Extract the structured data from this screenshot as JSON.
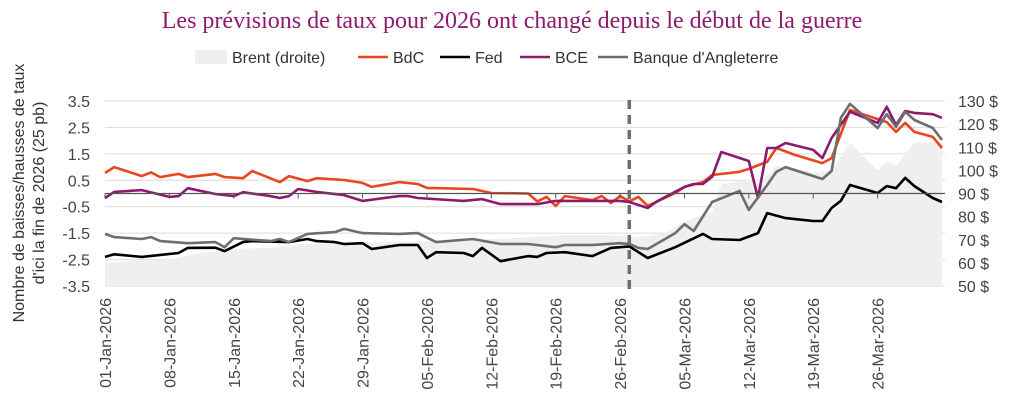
{
  "chart_data": {
    "type": "line",
    "title": "Les prévisions de taux pour 2026 ont changé depuis le début de la guerre",
    "ylabel_lines": [
      "Nombre de baisses/hausses de taux",
      "d'ici la fin de 2026 (25 pb)"
    ],
    "ylim": [
      -3.5,
      3.5
    ],
    "yticks": [
      "3.5",
      "2.5",
      "1.5",
      "0.5",
      "-0.5",
      "-1.5",
      "-2.5",
      "-3.5"
    ],
    "y2lim": [
      50,
      130
    ],
    "y2ticks": [
      "130 $",
      "120 $",
      "110 $",
      "100 $",
      "90 $",
      "80 $",
      "70 $",
      "60 $",
      "50 $"
    ],
    "xlim": [
      "2026-01-01",
      "2026-04-02"
    ],
    "xticks": [
      {
        "date": "2026-01-01",
        "label": "01-Jan-2026"
      },
      {
        "date": "2026-01-08",
        "label": "08-Jan-2026"
      },
      {
        "date": "2026-01-15",
        "label": "15-Jan-2026"
      },
      {
        "date": "2026-01-22",
        "label": "22-Jan-2026"
      },
      {
        "date": "2026-01-29",
        "label": "29-Jan-2026"
      },
      {
        "date": "2026-02-05",
        "label": "05-Feb-2026"
      },
      {
        "date": "2026-02-12",
        "label": "12-Feb-2026"
      },
      {
        "date": "2026-02-19",
        "label": "19-Feb-2026"
      },
      {
        "date": "2026-02-26",
        "label": "26-Feb-2026"
      },
      {
        "date": "2026-03-05",
        "label": "05-Mar-2026"
      },
      {
        "date": "2026-03-12",
        "label": "12-Mar-2026"
      },
      {
        "date": "2026-03-19",
        "label": "19-Mar-2026"
      },
      {
        "date": "2026-03-26",
        "label": "26-Mar-2026"
      }
    ],
    "grid": true,
    "legend_placement": "top",
    "vline_date": "2026-02-27",
    "area": {
      "name": "Brent (droite)",
      "axis": "right",
      "color": "#EEEFEE",
      "points": [
        [
          "2026-01-01",
          60
        ],
        [
          "2026-01-04",
          61
        ],
        [
          "2026-01-08",
          61.5
        ],
        [
          "2026-01-11",
          64
        ],
        [
          "2026-01-15",
          66
        ],
        [
          "2026-01-19",
          66.5
        ],
        [
          "2026-01-22",
          68
        ],
        [
          "2026-01-26",
          68.5
        ],
        [
          "2026-01-29",
          69
        ],
        [
          "2026-02-02",
          69
        ],
        [
          "2026-02-06",
          69.5
        ],
        [
          "2026-02-10",
          70
        ],
        [
          "2026-02-16",
          71
        ],
        [
          "2026-02-20",
          72
        ],
        [
          "2026-02-25",
          72
        ],
        [
          "2026-02-28",
          71
        ],
        [
          "2026-03-03",
          73
        ],
        [
          "2026-03-05",
          78
        ],
        [
          "2026-03-08",
          82
        ],
        [
          "2026-03-09",
          94
        ],
        [
          "2026-03-12",
          96
        ],
        [
          "2026-03-13",
          94
        ],
        [
          "2026-03-15",
          102
        ],
        [
          "2026-03-17",
          101
        ],
        [
          "2026-03-19",
          99
        ],
        [
          "2026-03-21",
          100
        ],
        [
          "2026-03-23",
          112
        ],
        [
          "2026-03-26",
          100
        ],
        [
          "2026-03-27",
          104
        ],
        [
          "2026-03-28",
          102
        ],
        [
          "2026-03-30",
          112
        ],
        [
          "2026-04-02",
          112
        ]
      ]
    },
    "series": [
      {
        "name": "BdC",
        "color": "#E8461E",
        "points": [
          [
            "2026-01-01",
            0.78
          ],
          [
            "2026-01-02",
            1.0
          ],
          [
            "2026-01-05",
            0.66
          ],
          [
            "2026-01-06",
            0.8
          ],
          [
            "2026-01-07",
            0.62
          ],
          [
            "2026-01-09",
            0.74
          ],
          [
            "2026-01-10",
            0.62
          ],
          [
            "2026-01-13",
            0.74
          ],
          [
            "2026-01-14",
            0.62
          ],
          [
            "2026-01-16",
            0.58
          ],
          [
            "2026-01-17",
            0.85
          ],
          [
            "2026-01-20",
            0.43
          ],
          [
            "2026-01-21",
            0.66
          ],
          [
            "2026-01-23",
            0.47
          ],
          [
            "2026-01-24",
            0.58
          ],
          [
            "2026-01-27",
            0.51
          ],
          [
            "2026-01-29",
            0.4
          ],
          [
            "2026-01-30",
            0.25
          ],
          [
            "2026-02-02",
            0.43
          ],
          [
            "2026-02-04",
            0.36
          ],
          [
            "2026-02-05",
            0.21
          ],
          [
            "2026-02-10",
            0.17
          ],
          [
            "2026-02-12",
            0.02
          ],
          [
            "2026-02-16",
            0
          ],
          [
            "2026-02-17",
            -0.3
          ],
          [
            "2026-02-18",
            -0.13
          ],
          [
            "2026-02-19",
            -0.47
          ],
          [
            "2026-02-20",
            -0.1
          ],
          [
            "2026-02-23",
            -0.25
          ],
          [
            "2026-02-24",
            -0.1
          ],
          [
            "2026-02-25",
            -0.36
          ],
          [
            "2026-02-26",
            -0.1
          ],
          [
            "2026-02-27",
            -0.3
          ],
          [
            "2026-02-28",
            -0.13
          ],
          [
            "2026-03-01",
            -0.47
          ],
          [
            "2026-03-04",
            0.02
          ],
          [
            "2026-03-05",
            0.25
          ],
          [
            "2026-03-07",
            0.43
          ],
          [
            "2026-03-08",
            0.7
          ],
          [
            "2026-03-11",
            0.82
          ],
          [
            "2026-03-12",
            0.93
          ],
          [
            "2026-03-14",
            1.2
          ],
          [
            "2026-03-15",
            1.72
          ],
          [
            "2026-03-17",
            1.46
          ],
          [
            "2026-03-20",
            1.15
          ],
          [
            "2026-03-21",
            1.34
          ],
          [
            "2026-03-23",
            3.16
          ],
          [
            "2026-03-27",
            2.7
          ],
          [
            "2026-03-28",
            2.33
          ],
          [
            "2026-03-29",
            2.67
          ],
          [
            "2026-03-30",
            2.33
          ],
          [
            "2026-04-01",
            2.14
          ],
          [
            "2026-04-02",
            1.72
          ]
        ]
      },
      {
        "name": "Fed",
        "color": "#000000",
        "points": [
          [
            "2026-01-01",
            -2.4
          ],
          [
            "2026-01-02",
            -2.3
          ],
          [
            "2026-01-05",
            -2.4
          ],
          [
            "2026-01-09",
            -2.25
          ],
          [
            "2026-01-10",
            -2.06
          ],
          [
            "2026-01-13",
            -2.05
          ],
          [
            "2026-01-14",
            -2.18
          ],
          [
            "2026-01-16",
            -1.84
          ],
          [
            "2026-01-17",
            -1.8
          ],
          [
            "2026-01-21",
            -1.84
          ],
          [
            "2026-01-23",
            -1.72
          ],
          [
            "2026-01-24",
            -1.8
          ],
          [
            "2026-01-26",
            -1.84
          ],
          [
            "2026-01-27",
            -1.91
          ],
          [
            "2026-01-29",
            -1.88
          ],
          [
            "2026-01-30",
            -2.1
          ],
          [
            "2026-02-02",
            -1.95
          ],
          [
            "2026-02-04",
            -1.95
          ],
          [
            "2026-02-05",
            -2.44
          ],
          [
            "2026-02-06",
            -2.22
          ],
          [
            "2026-02-09",
            -2.25
          ],
          [
            "2026-02-10",
            -2.37
          ],
          [
            "2026-02-11",
            -2.06
          ],
          [
            "2026-02-13",
            -2.56
          ],
          [
            "2026-02-16",
            -2.37
          ],
          [
            "2026-02-17",
            -2.4
          ],
          [
            "2026-02-18",
            -2.25
          ],
          [
            "2026-02-20",
            -2.22
          ],
          [
            "2026-02-23",
            -2.37
          ],
          [
            "2026-02-25",
            -2.06
          ],
          [
            "2026-02-27",
            -2.0
          ],
          [
            "2026-03-01",
            -2.44
          ],
          [
            "2026-03-04",
            -2.03
          ],
          [
            "2026-03-07",
            -1.53
          ],
          [
            "2026-03-08",
            -1.72
          ],
          [
            "2026-03-11",
            -1.76
          ],
          [
            "2026-03-13",
            -1.5
          ],
          [
            "2026-03-14",
            -0.74
          ],
          [
            "2026-03-16",
            -0.93
          ],
          [
            "2026-03-19",
            -1.04
          ],
          [
            "2026-03-20",
            -1.04
          ],
          [
            "2026-03-21",
            -0.55
          ],
          [
            "2026-03-22",
            -0.28
          ],
          [
            "2026-03-23",
            0.32
          ],
          [
            "2026-03-26",
            0.02
          ],
          [
            "2026-03-27",
            0.28
          ],
          [
            "2026-03-28",
            0.2
          ],
          [
            "2026-03-29",
            0.59
          ],
          [
            "2026-03-30",
            0.28
          ],
          [
            "2026-04-01",
            -0.17
          ],
          [
            "2026-04-02",
            -0.32
          ]
        ]
      },
      {
        "name": "BCE",
        "color": "#8E1A6E",
        "points": [
          [
            "2026-01-01",
            -0.17
          ],
          [
            "2026-01-02",
            0.06
          ],
          [
            "2026-01-05",
            0.13
          ],
          [
            "2026-01-08",
            -0.13
          ],
          [
            "2026-01-09",
            -0.1
          ],
          [
            "2026-01-10",
            0.2
          ],
          [
            "2026-01-13",
            -0.02
          ],
          [
            "2026-01-15",
            -0.1
          ],
          [
            "2026-01-16",
            0.05
          ],
          [
            "2026-01-19",
            -0.1
          ],
          [
            "2026-01-20",
            -0.17
          ],
          [
            "2026-01-21",
            -0.1
          ],
          [
            "2026-01-22",
            0.17
          ],
          [
            "2026-01-24",
            0.06
          ],
          [
            "2026-01-27",
            -0.06
          ],
          [
            "2026-01-29",
            -0.28
          ],
          [
            "2026-02-02",
            -0.1
          ],
          [
            "2026-02-03",
            -0.1
          ],
          [
            "2026-02-04",
            -0.17
          ],
          [
            "2026-02-09",
            -0.28
          ],
          [
            "2026-02-11",
            -0.21
          ],
          [
            "2026-02-13",
            -0.4
          ],
          [
            "2026-02-17",
            -0.4
          ],
          [
            "2026-02-19",
            -0.28
          ],
          [
            "2026-02-26",
            -0.28
          ],
          [
            "2026-02-27",
            -0.32
          ],
          [
            "2026-03-01",
            -0.55
          ],
          [
            "2026-03-02",
            -0.3
          ],
          [
            "2026-03-05",
            0.25
          ],
          [
            "2026-03-06",
            0.36
          ],
          [
            "2026-03-07",
            0.36
          ],
          [
            "2026-03-08",
            0.63
          ],
          [
            "2026-03-09",
            1.57
          ],
          [
            "2026-03-12",
            1.23
          ],
          [
            "2026-03-13",
            -0.17
          ],
          [
            "2026-03-14",
            1.72
          ],
          [
            "2026-03-15",
            1.72
          ],
          [
            "2026-03-16",
            1.91
          ],
          [
            "2026-03-19",
            1.65
          ],
          [
            "2026-03-20",
            1.34
          ],
          [
            "2026-03-21",
            2.1
          ],
          [
            "2026-03-23",
            3.09
          ],
          [
            "2026-03-26",
            2.67
          ],
          [
            "2026-03-27",
            3.28
          ],
          [
            "2026-03-28",
            2.6
          ],
          [
            "2026-03-29",
            3.12
          ],
          [
            "2026-03-30",
            3.05
          ],
          [
            "2026-04-01",
            3.0
          ],
          [
            "2026-04-02",
            2.86
          ]
        ]
      },
      {
        "name": "Banque d'Angleterre",
        "color": "#6D6E71",
        "points": [
          [
            "2026-01-01",
            -1.53
          ],
          [
            "2026-01-02",
            -1.65
          ],
          [
            "2026-01-05",
            -1.72
          ],
          [
            "2026-01-06",
            -1.65
          ],
          [
            "2026-01-07",
            -1.8
          ],
          [
            "2026-01-10",
            -1.88
          ],
          [
            "2026-01-13",
            -1.84
          ],
          [
            "2026-01-14",
            -2.03
          ],
          [
            "2026-01-15",
            -1.69
          ],
          [
            "2026-01-19",
            -1.8
          ],
          [
            "2026-01-20",
            -1.72
          ],
          [
            "2026-01-21",
            -1.84
          ],
          [
            "2026-01-23",
            -1.53
          ],
          [
            "2026-01-26",
            -1.46
          ],
          [
            "2026-01-27",
            -1.34
          ],
          [
            "2026-01-29",
            -1.5
          ],
          [
            "2026-02-02",
            -1.53
          ],
          [
            "2026-02-04",
            -1.5
          ],
          [
            "2026-02-06",
            -1.84
          ],
          [
            "2026-02-10",
            -1.72
          ],
          [
            "2026-02-13",
            -1.91
          ],
          [
            "2026-02-16",
            -1.91
          ],
          [
            "2026-02-19",
            -2.03
          ],
          [
            "2026-02-20",
            -1.95
          ],
          [
            "2026-02-23",
            -1.95
          ],
          [
            "2026-02-26",
            -1.88
          ],
          [
            "2026-02-27",
            -1.91
          ],
          [
            "2026-02-28",
            -2.06
          ],
          [
            "2026-03-01",
            -2.1
          ],
          [
            "2026-03-04",
            -1.5
          ],
          [
            "2026-03-05",
            -1.16
          ],
          [
            "2026-03-06",
            -1.42
          ],
          [
            "2026-03-08",
            -0.32
          ],
          [
            "2026-03-11",
            0.1
          ],
          [
            "2026-03-12",
            -0.62
          ],
          [
            "2026-03-14",
            0.32
          ],
          [
            "2026-03-15",
            0.82
          ],
          [
            "2026-03-16",
            1.0
          ],
          [
            "2026-03-20",
            0.55
          ],
          [
            "2026-03-21",
            0.85
          ],
          [
            "2026-03-22",
            2.86
          ],
          [
            "2026-03-23",
            3.39
          ],
          [
            "2026-03-26",
            2.48
          ],
          [
            "2026-03-27",
            3.0
          ],
          [
            "2026-03-28",
            2.52
          ],
          [
            "2026-03-29",
            3.09
          ],
          [
            "2026-03-30",
            2.78
          ],
          [
            "2026-04-01",
            2.48
          ],
          [
            "2026-04-02",
            2.03
          ]
        ]
      }
    ]
  }
}
